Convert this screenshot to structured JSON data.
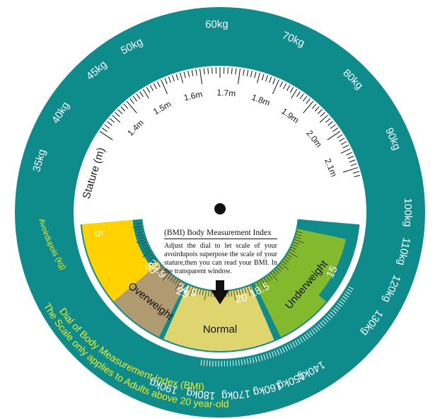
{
  "stature_label": "Stature (m)",
  "avoirdupois_label": "Avoirdupois (kg)",
  "footer": {
    "title": "Dial of Body Measurement Index (BMI)",
    "note": "The Scale only applies to Adults above 20 year-old"
  },
  "instructions": {
    "title": "(BMI) Body Measurement Index",
    "body": "Adjust the dial to let scale of your avoirdupois superpose the scale of your stature,then you can read your BMI. In the transparent window."
  },
  "weight_labels": [
    "35kg",
    "40kg",
    "45kg",
    "50kg",
    "60kg",
    "70kg",
    "80kg",
    "90kg",
    "100kg",
    "110kg",
    "120kg",
    "130kg",
    "140kg",
    "150kg",
    "160kg",
    "170kg",
    "180kg",
    "190kg"
  ],
  "stature_labels": [
    "1.4m",
    "1.5m",
    "1.6m",
    "1.7m",
    "1.8m",
    "1.9m",
    "2.0m",
    "2.1m"
  ],
  "categories": [
    "Overweight",
    "Normal",
    "Underweight"
  ],
  "bmi_labels": [
    "5",
    "30",
    "29.9",
    "25",
    "24.9",
    "20",
    "18.5",
    "15"
  ],
  "colors": {
    "ring": "#0e8c8c",
    "obese": "#ffd200",
    "overweight": "#b09a70",
    "normal": "#dfd56f",
    "underweight": "#82b92d",
    "divider": "#0e8c8c"
  }
}
